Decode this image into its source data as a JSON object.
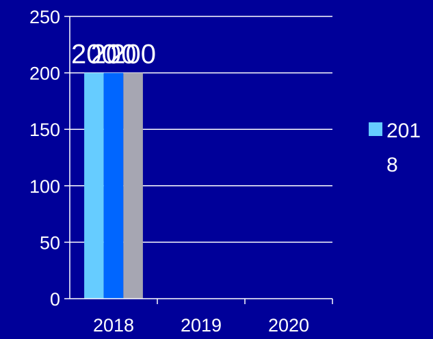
{
  "chart_data": {
    "type": "bar",
    "categories": [
      "2018",
      "2019",
      "2020"
    ],
    "series": [
      {
        "values": [
          200,
          null,
          null
        ],
        "color": "#66ccff"
      },
      {
        "values": [
          200,
          null,
          null
        ],
        "color": "#0066ff"
      },
      {
        "values": [
          200,
          null,
          null
        ],
        "color": "#a6a6b2"
      }
    ],
    "data_labels": [
      "200",
      "200",
      "200"
    ],
    "yticks": [
      "0",
      "50",
      "100",
      "150",
      "200",
      "250"
    ],
    "ylim": [
      0,
      250
    ],
    "grid": true,
    "legend": {
      "position": "right",
      "lines": [
        "201",
        "8"
      ],
      "color": "#66ccff"
    },
    "colors": {
      "background": "#000099",
      "axis": "#ffffff",
      "text": "#ffffff"
    }
  }
}
